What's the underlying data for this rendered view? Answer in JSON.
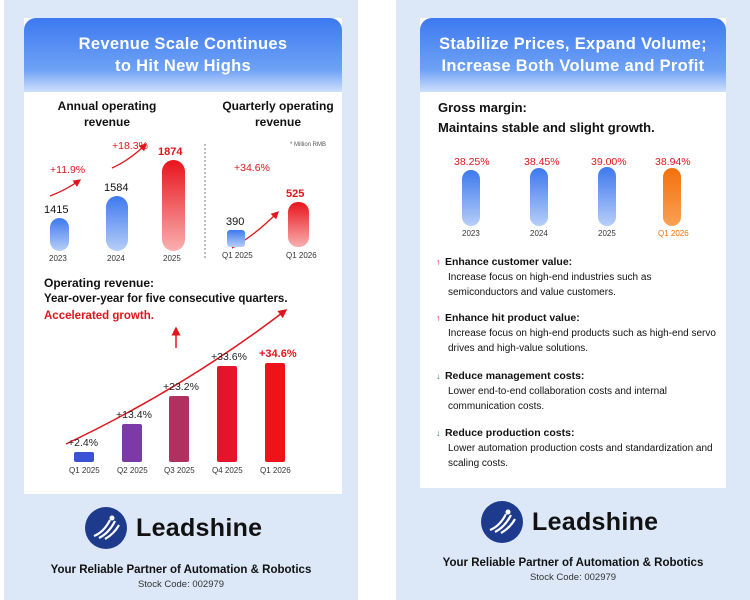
{
  "left": {
    "header": {
      "line1": "Revenue Scale Continues",
      "line2": "to Hit New Highs"
    },
    "annual": {
      "title_line1": "Annual operating",
      "title_line2": "revenue",
      "bars": [
        {
          "year": "2023",
          "value": "1415"
        },
        {
          "year": "2024",
          "value": "1584"
        },
        {
          "year": "2025",
          "value": "1874"
        }
      ],
      "growth": [
        "+11.9%",
        "+18.3%"
      ]
    },
    "quarterly": {
      "title_line1": "Quarterly operating",
      "title_line2": "revenue",
      "unit": "* Million RMB",
      "bars": [
        {
          "label": "Q1 2025",
          "value": "390"
        },
        {
          "label": "Q1 2026",
          "value": "525"
        }
      ],
      "growth": "+34.6%"
    },
    "yoy": {
      "title": "Operating revenue:",
      "subtitle": "Year-over-year for five consecutive quarters.",
      "highlight": "Accelerated growth.",
      "bars": [
        {
          "label": "Q1 2025",
          "value": "+2.4%",
          "pct": 2.4,
          "color": "#3b52d6"
        },
        {
          "label": "Q2 2025",
          "value": "+13.4%",
          "pct": 13.4,
          "color": "#7b3aa6"
        },
        {
          "label": "Q3 2025",
          "value": "+23.2%",
          "pct": 23.2,
          "color": "#b0305f"
        },
        {
          "label": "Q4 2025",
          "value": "+33.6%",
          "pct": 33.6,
          "color": "#e4152a"
        },
        {
          "label": "Q1 2026",
          "value": "+34.6%",
          "pct": 34.6,
          "color": "#ee1219"
        }
      ]
    }
  },
  "right": {
    "header": {
      "line1": "Stabilize Prices, Expand Volume;",
      "line2": "Increase Both Volume and Profit"
    },
    "margin": {
      "title_line1": "Gross margin:",
      "title_line2": "Maintains stable and slight growth.",
      "bars": [
        {
          "label": "2023",
          "value": "38.25%"
        },
        {
          "label": "2024",
          "value": "38.45%"
        },
        {
          "label": "2025",
          "value": "39.00%"
        },
        {
          "label": "Q1 2026",
          "value": "38.94%"
        }
      ]
    },
    "bullets": [
      {
        "title": "Enhance customer value:",
        "body": "Increase focus on high-end industries such as semiconductors and value customers."
      },
      {
        "title": "Enhance hit product value:",
        "body": "Increase focus on high-end products such as high-end servo drives and high-value solutions."
      },
      {
        "title": "Reduce management costs:",
        "body": "Lower end-to-end collaboration costs and internal communication costs."
      },
      {
        "title": "Reduce production costs:",
        "body": "Lower automation production costs and standardization and scaling costs."
      }
    ]
  },
  "brand": {
    "name": "Leadshine",
    "tagline": "Your Reliable Partner of Automation & Robotics",
    "stock": "Stock Code: 002979"
  },
  "colors": {
    "blue": "#3d79f0",
    "red": "#e0151c",
    "orange": "#f4700c",
    "navy": "#1d3a8c",
    "panel": "#dce8f7"
  }
}
